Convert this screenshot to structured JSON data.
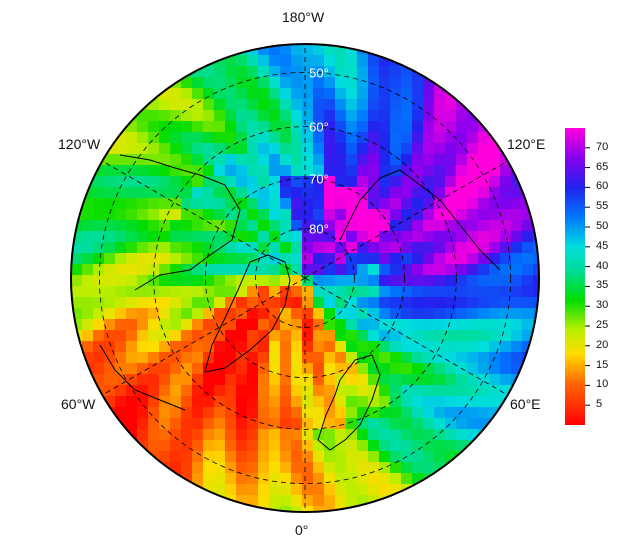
{
  "map": {
    "projection": "north-polar-stereographic",
    "longitude_labels": {
      "top": "180°W",
      "bottom": "0°",
      "upper_left": "120°W",
      "upper_right": "120°E",
      "lower_left": "60°W",
      "lower_right": "60°E"
    },
    "latitude_labels": [
      "50°",
      "60°",
      "70°",
      "80°"
    ],
    "field_description_colors": {
      "high_value": "#cc00ff",
      "low_value": "#ff0000"
    }
  },
  "colorbar": {
    "min": 0,
    "max": 75,
    "ticks": [
      "5",
      "10",
      "15",
      "20",
      "25",
      "30",
      "35",
      "40",
      "45",
      "50",
      "55",
      "60",
      "65",
      "70"
    ],
    "tick_values": [
      5,
      10,
      15,
      20,
      25,
      30,
      35,
      40,
      45,
      50,
      55,
      60,
      65,
      70
    ]
  }
}
